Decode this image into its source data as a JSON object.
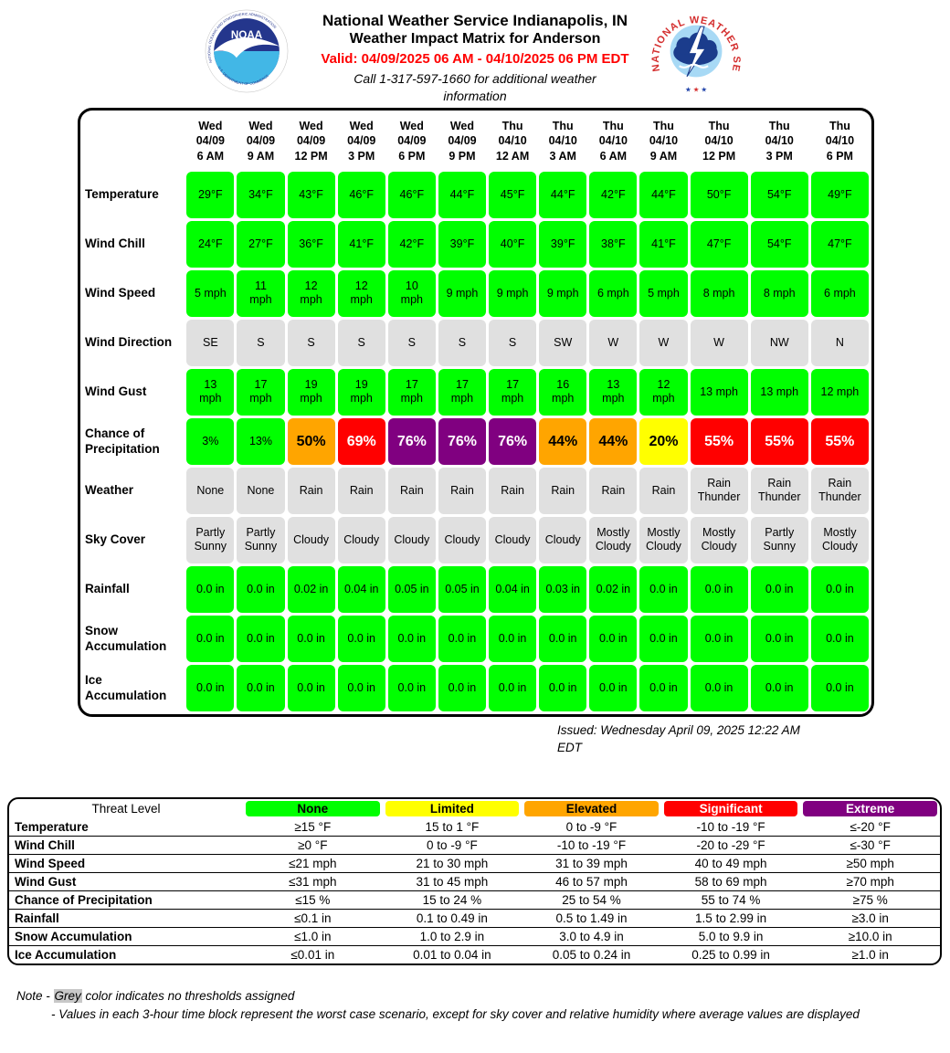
{
  "header": {
    "title_line1": "National Weather Service Indianapolis, IN",
    "title_line2": "Weather Impact Matrix for Anderson",
    "valid_line": "Valid: 04/09/2025 06 AM - 04/10/2025 06 PM EDT",
    "call_line": "Call 1-317-597-1660 for additional weather information",
    "noaa_logo": {
      "ring_top": "NATIONAL OCEANIC AND ATMOSPHERIC ADMINISTRATION",
      "ring_bottom": "U.S. DEPARTMENT OF COMMERCE",
      "center": "NOAA"
    },
    "nws_logo": {
      "ring": "NATIONAL WEATHER SERVICE"
    }
  },
  "chart_data": {
    "type": "heatmap",
    "title": "Weather Impact Matrix for Anderson",
    "columns": [
      {
        "day": "Wed",
        "date": "04/09",
        "time": "6 AM"
      },
      {
        "day": "Wed",
        "date": "04/09",
        "time": "9 AM"
      },
      {
        "day": "Wed",
        "date": "04/09",
        "time": "12 PM"
      },
      {
        "day": "Wed",
        "date": "04/09",
        "time": "3 PM"
      },
      {
        "day": "Wed",
        "date": "04/09",
        "time": "6 PM"
      },
      {
        "day": "Wed",
        "date": "04/09",
        "time": "9 PM"
      },
      {
        "day": "Thu",
        "date": "04/10",
        "time": "12 AM"
      },
      {
        "day": "Thu",
        "date": "04/10",
        "time": "3 AM"
      },
      {
        "day": "Thu",
        "date": "04/10",
        "time": "6 AM"
      },
      {
        "day": "Thu",
        "date": "04/10",
        "time": "9 AM"
      },
      {
        "day": "Thu",
        "date": "04/10",
        "time": "12 PM"
      },
      {
        "day": "Thu",
        "date": "04/10",
        "time": "3 PM"
      },
      {
        "day": "Thu",
        "date": "04/10",
        "time": "6 PM"
      }
    ],
    "rows": [
      {
        "label": "Temperature",
        "level": "none",
        "cells": [
          "29°F",
          "34°F",
          "43°F",
          "46°F",
          "46°F",
          "44°F",
          "45°F",
          "44°F",
          "42°F",
          "44°F",
          "50°F",
          "54°F",
          "49°F"
        ]
      },
      {
        "label": "Wind Chill",
        "level": "none",
        "cells": [
          "24°F",
          "27°F",
          "36°F",
          "41°F",
          "42°F",
          "39°F",
          "40°F",
          "39°F",
          "38°F",
          "41°F",
          "47°F",
          "54°F",
          "47°F"
        ]
      },
      {
        "label": "Wind Speed",
        "level": "none",
        "cells": [
          "5 mph",
          "11 mph",
          "12 mph",
          "12 mph",
          "10 mph",
          "9 mph",
          "9 mph",
          "9 mph",
          "6 mph",
          "5 mph",
          "8 mph",
          "8 mph",
          "6 mph"
        ]
      },
      {
        "label": "Wind Direction",
        "level": "nothreshold",
        "cells": [
          "SE",
          "S",
          "S",
          "S",
          "S",
          "S",
          "S",
          "SW",
          "W",
          "W",
          "W",
          "NW",
          "N"
        ]
      },
      {
        "label": "Wind Gust",
        "level": "none",
        "cells": [
          "13 mph",
          "17 mph",
          "19 mph",
          "19 mph",
          "17 mph",
          "17 mph",
          "17 mph",
          "16 mph",
          "13 mph",
          "12 mph",
          "13 mph",
          "13 mph",
          "12 mph"
        ]
      },
      {
        "label": "Chance of Precipitation",
        "levels": [
          "none",
          "none",
          "elevated",
          "significant",
          "extreme",
          "extreme",
          "extreme",
          "elevated",
          "elevated",
          "limited",
          "significant",
          "significant",
          "significant"
        ],
        "cells": [
          "3%",
          "13%",
          "50%",
          "69%",
          "76%",
          "76%",
          "76%",
          "44%",
          "44%",
          "20%",
          "55%",
          "55%",
          "55%"
        ]
      },
      {
        "label": "Weather",
        "level": "nothreshold",
        "cells": [
          "None",
          "None",
          "Rain",
          "Rain",
          "Rain",
          "Rain",
          "Rain",
          "Rain",
          "Rain",
          "Rain",
          "Rain Thunder",
          "Rain Thunder",
          "Rain Thunder"
        ]
      },
      {
        "label": "Sky Cover",
        "level": "nothreshold",
        "cells": [
          "Partly Sunny",
          "Partly Sunny",
          "Cloudy",
          "Cloudy",
          "Cloudy",
          "Cloudy",
          "Cloudy",
          "Cloudy",
          "Mostly Cloudy",
          "Mostly Cloudy",
          "Mostly Cloudy",
          "Partly Sunny",
          "Mostly Cloudy"
        ]
      },
      {
        "label": "Rainfall",
        "level": "none",
        "cells": [
          "0.0 in",
          "0.0 in",
          "0.02 in",
          "0.04 in",
          "0.05 in",
          "0.05 in",
          "0.04 in",
          "0.03 in",
          "0.02 in",
          "0.0 in",
          "0.0 in",
          "0.0 in",
          "0.0 in"
        ]
      },
      {
        "label": "Snow Accumulation",
        "level": "none",
        "cells": [
          "0.0 in",
          "0.0 in",
          "0.0 in",
          "0.0 in",
          "0.0 in",
          "0.0 in",
          "0.0 in",
          "0.0 in",
          "0.0 in",
          "0.0 in",
          "0.0 in",
          "0.0 in",
          "0.0 in"
        ]
      },
      {
        "label": "Ice Accumulation",
        "level": "none",
        "cells": [
          "0.0 in",
          "0.0 in",
          "0.0 in",
          "0.0 in",
          "0.0 in",
          "0.0 in",
          "0.0 in",
          "0.0 in",
          "0.0 in",
          "0.0 in",
          "0.0 in",
          "0.0 in",
          "0.0 in"
        ]
      }
    ],
    "legend": {
      "header_label": "Threat Level",
      "levels": [
        {
          "key": "none",
          "name": "None"
        },
        {
          "key": "limited",
          "name": "Limited"
        },
        {
          "key": "elevated",
          "name": "Elevated"
        },
        {
          "key": "significant",
          "name": "Significant"
        },
        {
          "key": "extreme",
          "name": "Extreme"
        }
      ],
      "rows": [
        {
          "label": "Temperature",
          "values": [
            "≥15 °F",
            "15 to 1 °F",
            "0 to -9 °F",
            "-10 to -19 °F",
            "≤-20 °F"
          ]
        },
        {
          "label": "Wind Chill",
          "values": [
            "≥0 °F",
            "0 to -9 °F",
            "-10 to -19 °F",
            "-20 to -29 °F",
            "≤-30 °F"
          ]
        },
        {
          "label": "Wind Speed",
          "values": [
            "≤21 mph",
            "21 to 30 mph",
            "31 to 39 mph",
            "40 to 49 mph",
            "≥50 mph"
          ]
        },
        {
          "label": "Wind Gust",
          "values": [
            "≤31 mph",
            "31 to 45 mph",
            "46 to 57 mph",
            "58 to 69 mph",
            "≥70 mph"
          ]
        },
        {
          "label": "Chance of Precipitation",
          "values": [
            "≤15 %",
            "15 to 24 %",
            "25 to 54 %",
            "55 to 74 %",
            "≥75 %"
          ]
        },
        {
          "label": "Rainfall",
          "values": [
            "≤0.1 in",
            "0.1 to 0.49 in",
            "0.5 to 1.49 in",
            "1.5 to 2.99 in",
            "≥3.0 in"
          ]
        },
        {
          "label": "Snow Accumulation",
          "values": [
            "≤1.0 in",
            "1.0 to 2.9 in",
            "3.0 to 4.9 in",
            "5.0 to 9.9 in",
            "≥10.0 in"
          ]
        },
        {
          "label": "Ice Accumulation",
          "values": [
            "≤0.01 in",
            "0.01 to 0.04 in",
            "0.05 to 0.24 in",
            "0.25 to 0.99 in",
            "≥1.0 in"
          ]
        }
      ]
    }
  },
  "issued": "Issued: Wednesday April 09, 2025 12:22 AM EDT",
  "notes": {
    "prefix": "Note - ",
    "grey_word": "Grey",
    "line1_rest": " color indicates no thresholds assigned",
    "line2": "- Values in each 3-hour time block represent the worst case scenario, except for sky cover and relative humidity where average values are displayed"
  },
  "colors": {
    "none": "#00ff00",
    "limited": "#ffff00",
    "elevated": "#ffa500",
    "significant": "#ff0000",
    "extreme": "#800080",
    "nothreshold": "#e0e0e0",
    "valid_text": "#ff0000",
    "noaa_navy": "#24368c",
    "noaa_cyan": "#42b7e6",
    "nws_red": "#d42e2e",
    "nws_blue": "#1b3c8c",
    "nws_lightblue": "#a7d9f5"
  }
}
